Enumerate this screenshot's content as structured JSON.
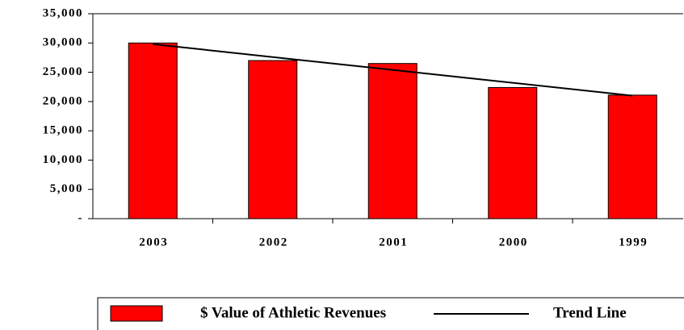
{
  "chart_data": {
    "type": "bar",
    "categories": [
      "2003",
      "2002",
      "2001",
      "2000",
      "1999"
    ],
    "series": [
      {
        "name": "$ Value of Athletic Revenues",
        "color": "#ff0000",
        "values": [
          30000,
          27000,
          26500,
          22400,
          21100
        ]
      },
      {
        "name": "Trend Line",
        "color": "#000000",
        "type": "line",
        "values": [
          29800,
          27600,
          25400,
          23200,
          21000
        ]
      }
    ],
    "ylim": [
      0,
      35000
    ],
    "yticks": [
      {
        "value": 0,
        "label": "-"
      },
      {
        "value": 5000,
        "label": "5,000"
      },
      {
        "value": 10000,
        "label": "10,000"
      },
      {
        "value": 15000,
        "label": "15,000"
      },
      {
        "value": 20000,
        "label": "20,000"
      },
      {
        "value": 25000,
        "label": "25,000"
      },
      {
        "value": 30000,
        "label": "30,000"
      },
      {
        "value": 35000,
        "label": "35,000"
      }
    ],
    "legend": "bottom"
  }
}
